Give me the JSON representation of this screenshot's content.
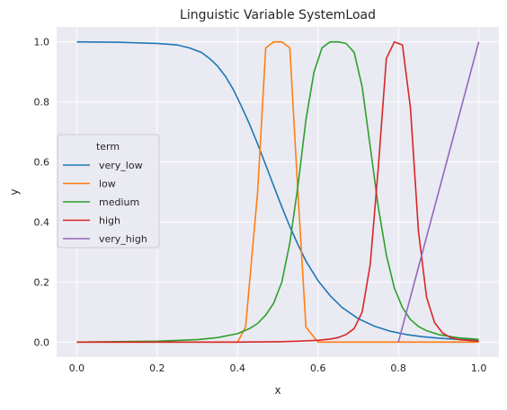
{
  "chart_data": {
    "type": "line",
    "title": "Linguistic Variable SystemLoad",
    "xlabel": "x",
    "ylabel": "y",
    "xlim": [
      -0.05,
      1.05
    ],
    "ylim": [
      -0.05,
      1.05
    ],
    "xticks": [
      0.0,
      0.2,
      0.4,
      0.6,
      0.8,
      1.0
    ],
    "xtick_labels": [
      "0.0",
      "0.2",
      "0.4",
      "0.6",
      "0.8",
      "1.0"
    ],
    "yticks": [
      0.0,
      0.2,
      0.4,
      0.6,
      0.8,
      1.0
    ],
    "ytick_labels": [
      "0.0",
      "0.2",
      "0.4",
      "0.6",
      "0.8",
      "1.0"
    ],
    "grid": true,
    "legend": {
      "title": "term",
      "placement": "center-left"
    },
    "series": [
      {
        "name": "very_low",
        "color": "#1f77b4",
        "x": [
          0.0,
          0.1,
          0.2,
          0.25,
          0.28,
          0.31,
          0.33,
          0.35,
          0.37,
          0.39,
          0.41,
          0.43,
          0.45,
          0.47,
          0.49,
          0.51,
          0.53,
          0.55,
          0.57,
          0.6,
          0.63,
          0.66,
          0.7,
          0.74,
          0.78,
          0.82,
          0.86,
          0.9,
          0.95,
          1.0
        ],
        "y": [
          1.0,
          0.999,
          0.995,
          0.99,
          0.98,
          0.965,
          0.945,
          0.92,
          0.885,
          0.84,
          0.785,
          0.725,
          0.66,
          0.59,
          0.52,
          0.45,
          0.385,
          0.325,
          0.27,
          0.205,
          0.155,
          0.115,
          0.078,
          0.053,
          0.036,
          0.025,
          0.018,
          0.013,
          0.009,
          0.006
        ]
      },
      {
        "name": "low",
        "color": "#ff7f0e",
        "x": [
          0.0,
          0.4,
          0.42,
          0.45,
          0.47,
          0.49,
          0.51,
          0.53,
          0.55,
          0.57,
          0.6,
          1.0
        ],
        "y": [
          0.0,
          0.0,
          0.05,
          0.5,
          0.98,
          1.0,
          1.0,
          0.98,
          0.5,
          0.05,
          0.0,
          0.0
        ]
      },
      {
        "name": "medium",
        "color": "#2ca02c",
        "x": [
          0.0,
          0.2,
          0.3,
          0.35,
          0.4,
          0.43,
          0.45,
          0.47,
          0.49,
          0.51,
          0.53,
          0.55,
          0.57,
          0.59,
          0.61,
          0.63,
          0.65,
          0.67,
          0.69,
          0.71,
          0.73,
          0.75,
          0.77,
          0.79,
          0.81,
          0.83,
          0.85,
          0.87,
          0.9,
          0.95,
          1.0
        ],
        "y": [
          0.0,
          0.003,
          0.008,
          0.015,
          0.028,
          0.045,
          0.062,
          0.09,
          0.13,
          0.2,
          0.33,
          0.52,
          0.74,
          0.9,
          0.98,
          1.0,
          1.0,
          0.995,
          0.965,
          0.85,
          0.65,
          0.45,
          0.29,
          0.18,
          0.115,
          0.075,
          0.052,
          0.038,
          0.025,
          0.014,
          0.009
        ]
      },
      {
        "name": "high",
        "color": "#d62728",
        "x": [
          0.0,
          0.4,
          0.5,
          0.55,
          0.6,
          0.63,
          0.65,
          0.67,
          0.69,
          0.71,
          0.73,
          0.75,
          0.77,
          0.79,
          0.81,
          0.83,
          0.85,
          0.87,
          0.89,
          0.91,
          0.93,
          0.95,
          1.0
        ],
        "y": [
          0.0,
          0.0,
          0.001,
          0.003,
          0.006,
          0.01,
          0.015,
          0.025,
          0.045,
          0.1,
          0.26,
          0.58,
          0.945,
          1.0,
          0.99,
          0.78,
          0.37,
          0.15,
          0.065,
          0.03,
          0.015,
          0.008,
          0.003
        ]
      },
      {
        "name": "very_high",
        "color": "#9467bd",
        "x": [
          0.8,
          1.0
        ],
        "y": [
          0.0,
          1.0
        ]
      }
    ]
  }
}
